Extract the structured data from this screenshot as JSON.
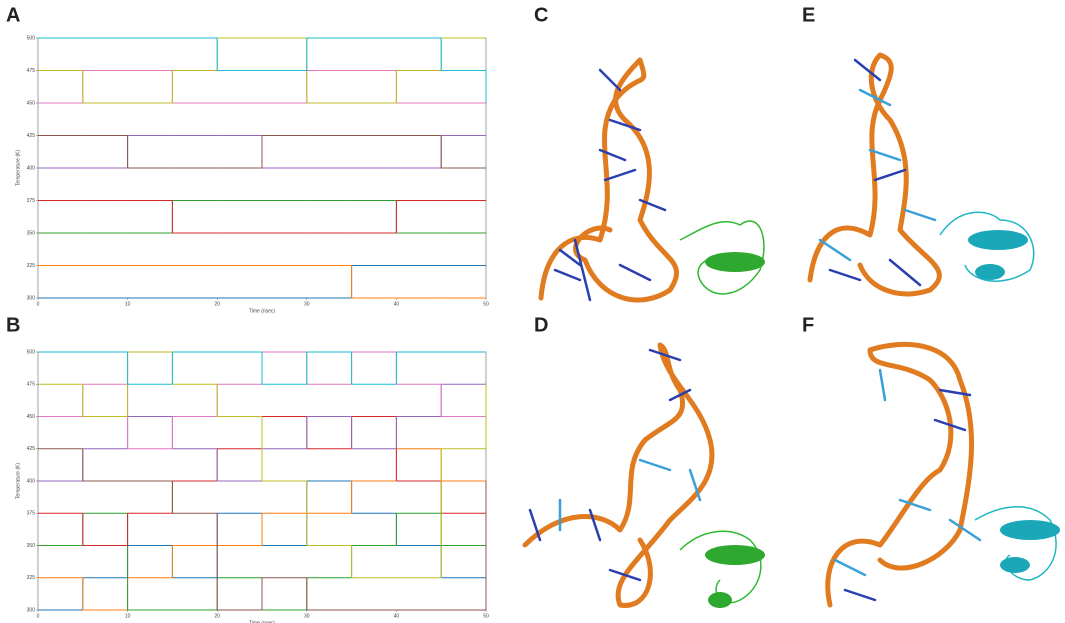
{
  "panels": [
    {
      "label": "A",
      "chart_data": {
        "type": "step",
        "xlabel": "Time (nsec)",
        "ylabel": "Temperature (K)",
        "x": [
          0,
          5,
          10,
          15,
          20,
          25,
          30,
          35,
          40,
          45,
          50
        ],
        "xlim": [
          0,
          50
        ],
        "xticks": [
          0,
          10,
          20,
          30,
          40,
          50
        ],
        "ylim": [
          300,
          500
        ],
        "yticks": [
          300,
          325,
          350,
          375,
          400,
          425,
          450,
          475,
          500
        ],
        "series": [
          {
            "color": "#1f77b4",
            "values": [
              300,
              300,
              300,
              300,
              300,
              300,
              300,
              325,
              325,
              325,
              325
            ]
          },
          {
            "color": "#ff7f0e",
            "values": [
              325,
              325,
              325,
              325,
              325,
              325,
              325,
              300,
              300,
              300,
              300
            ]
          },
          {
            "color": "#2ca02c",
            "values": [
              350,
              350,
              350,
              375,
              375,
              375,
              375,
              375,
              350,
              350,
              350
            ]
          },
          {
            "color": "#d62728",
            "values": [
              375,
              375,
              375,
              350,
              350,
              350,
              350,
              350,
              375,
              375,
              375
            ]
          },
          {
            "color": "#9467bd",
            "values": [
              400,
              400,
              425,
              425,
              425,
              400,
              400,
              400,
              400,
              425,
              425
            ]
          },
          {
            "color": "#8c564b",
            "values": [
              425,
              425,
              400,
              400,
              400,
              425,
              425,
              425,
              425,
              400,
              400
            ]
          },
          {
            "color": "#e377c2",
            "values": [
              450,
              475,
              475,
              450,
              450,
              450,
              475,
              475,
              450,
              450,
              475
            ]
          },
          {
            "color": "#bcbd22",
            "values": [
              475,
              450,
              450,
              475,
              500,
              500,
              450,
              450,
              475,
              500,
              500
            ]
          },
          {
            "color": "#17becf",
            "values": [
              500,
              500,
              500,
              500,
              475,
              475,
              500,
              500,
              500,
              475,
              450
            ]
          }
        ]
      }
    },
    {
      "label": "B",
      "chart_data": {
        "type": "step",
        "xlabel": "Time (nsec)",
        "ylabel": "Temperature (K)",
        "x": [
          0,
          5,
          10,
          15,
          20,
          25,
          30,
          35,
          40,
          45,
          50
        ],
        "xlim": [
          0,
          50
        ],
        "xticks": [
          0,
          10,
          20,
          30,
          40,
          50
        ],
        "ylim": [
          300,
          500
        ],
        "yticks": [
          300,
          325,
          350,
          375,
          400,
          425,
          450,
          475,
          500
        ],
        "series": [
          {
            "color": "#1f77b4",
            "values": [
              300,
              325,
              350,
              325,
              375,
              350,
              400,
              375,
              350,
              325,
              300
            ]
          },
          {
            "color": "#ff7f0e",
            "values": [
              325,
              300,
              325,
              350,
              350,
              375,
              375,
              400,
              425,
              400,
              375
            ]
          },
          {
            "color": "#2ca02c",
            "values": [
              350,
              375,
              300,
              300,
              325,
              300,
              325,
              350,
              375,
              350,
              325
            ]
          },
          {
            "color": "#d62728",
            "values": [
              375,
              350,
              375,
              400,
              425,
              450,
              425,
              450,
              400,
              375,
              350
            ]
          },
          {
            "color": "#9467bd",
            "values": [
              400,
              425,
              450,
              425,
              400,
              425,
              450,
              425,
              450,
              475,
              450
            ]
          },
          {
            "color": "#8c564b",
            "values": [
              425,
              400,
              400,
              375,
              300,
              325,
              300,
              300,
              300,
              300,
              400
            ]
          },
          {
            "color": "#e377c2",
            "values": [
              450,
              475,
              425,
              450,
              475,
              500,
              475,
              500,
              475,
              450,
              425
            ]
          },
          {
            "color": "#bcbd22",
            "values": [
              475,
              450,
              500,
              475,
              450,
              400,
              350,
              325,
              325,
              425,
              475
            ]
          },
          {
            "color": "#17becf",
            "values": [
              500,
              500,
              475,
              500,
              500,
              475,
              500,
              475,
              500,
              500,
              500
            ]
          }
        ]
      }
    },
    {
      "label": "C"
    },
    {
      "label": "D"
    },
    {
      "label": "E"
    },
    {
      "label": "F"
    }
  ]
}
